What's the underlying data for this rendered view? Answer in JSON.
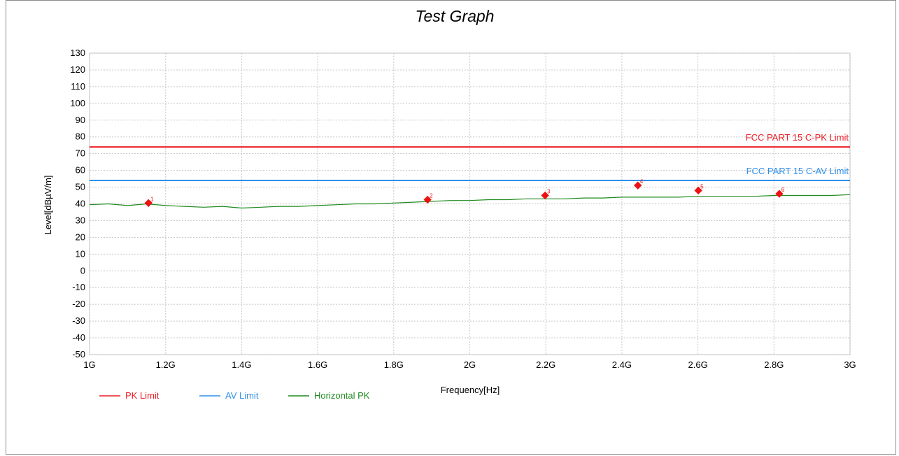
{
  "chart_data": {
    "type": "line",
    "title": "Test Graph",
    "xlabel": "Frequency[Hz]",
    "ylabel": "Level[dBµV/m]",
    "xlim": [
      1,
      3
    ],
    "ylim": [
      -50,
      130
    ],
    "x_ticks": [
      "1G",
      "1.2G",
      "1.4G",
      "1.6G",
      "1.8G",
      "2G",
      "2.2G",
      "2.4G",
      "2.6G",
      "2.8G",
      "3G"
    ],
    "y_ticks": [
      130,
      120,
      110,
      100,
      90,
      80,
      70,
      60,
      50,
      40,
      30,
      20,
      10,
      0,
      -10,
      -20,
      -30,
      -40,
      -50
    ],
    "grid": true,
    "legend_position": "bottom-left",
    "colors": {
      "pk_limit": "#ed1c24",
      "av_limit": "#2f8fe8",
      "horizontal_pk": "#1f8a1f",
      "marker": "#ee1111"
    },
    "series": [
      {
        "name": "PK Limit",
        "x": [
          1,
          3
        ],
        "y": [
          74,
          74
        ]
      },
      {
        "name": "AV Limit",
        "x": [
          1,
          3
        ],
        "y": [
          54,
          54
        ]
      },
      {
        "name": "Horizontal PK",
        "x": [
          1.0,
          1.05,
          1.1,
          1.15,
          1.2,
          1.25,
          1.3,
          1.35,
          1.4,
          1.45,
          1.5,
          1.55,
          1.6,
          1.65,
          1.7,
          1.75,
          1.8,
          1.85,
          1.9,
          1.95,
          2.0,
          2.05,
          2.1,
          2.15,
          2.2,
          2.25,
          2.3,
          2.35,
          2.4,
          2.45,
          2.5,
          2.55,
          2.6,
          2.65,
          2.7,
          2.75,
          2.8,
          2.85,
          2.9,
          2.95,
          3.0
        ],
        "y": [
          39.5,
          40,
          39,
          40,
          39,
          38.5,
          38,
          38.5,
          37.5,
          38,
          38.5,
          38.5,
          39,
          39.5,
          40,
          40,
          40.5,
          41,
          41.5,
          42,
          42,
          42.5,
          42.5,
          43,
          43,
          43,
          43.5,
          43.5,
          44,
          44,
          44,
          44,
          44.5,
          44.5,
          44.5,
          44.5,
          45,
          45,
          45,
          45,
          45.5
        ]
      }
    ],
    "limit_labels": [
      {
        "text": "FCC PART 15 C-PK Limit",
        "y": 74
      },
      {
        "text": "FCC PART 15 C-AV Limit",
        "y": 54
      }
    ],
    "markers": [
      {
        "label": "1",
        "x": 1.155,
        "y": 40.5
      },
      {
        "label": "2",
        "x": 1.889,
        "y": 42.5
      },
      {
        "label": "3",
        "x": 2.198,
        "y": 45
      },
      {
        "label": "4",
        "x": 2.442,
        "y": 51
      },
      {
        "label": "5",
        "x": 2.601,
        "y": 48
      },
      {
        "label": "6",
        "x": 2.814,
        "y": 46
      }
    ]
  }
}
